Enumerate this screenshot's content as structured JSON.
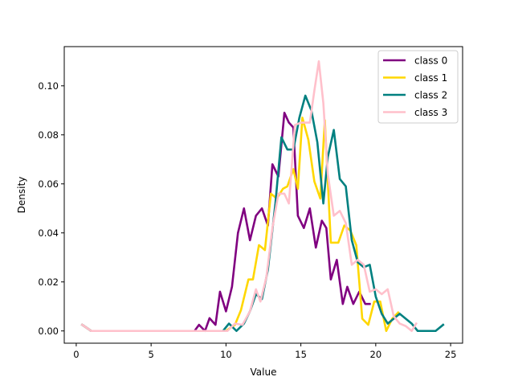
{
  "chart_data": {
    "type": "line",
    "title": "",
    "xlabel": "Value",
    "ylabel": "Density",
    "xlim": [
      -0.8,
      25.8
    ],
    "ylim": [
      -0.005,
      0.116
    ],
    "xticks": [
      0,
      5,
      10,
      15,
      20,
      25
    ],
    "xtick_labels": [
      "0",
      "5",
      "10",
      "15",
      "20",
      "25"
    ],
    "yticks": [
      0.0,
      0.02,
      0.04,
      0.06,
      0.08,
      0.1
    ],
    "ytick_labels": [
      "0.00",
      "0.02",
      "0.04",
      "0.06",
      "0.08",
      "0.10"
    ],
    "grid": false,
    "legend": {
      "position": "top-right"
    },
    "series": [
      {
        "name": "class 0",
        "color": "#800080",
        "x": [
          0.4,
          1.0,
          7.9,
          8.2,
          8.6,
          8.9,
          9.3,
          9.6,
          10.0,
          10.4,
          10.8,
          11.2,
          11.6,
          12.0,
          12.4,
          12.8,
          13.1,
          13.5,
          13.9,
          14.2,
          14.5,
          14.8,
          15.2,
          15.6,
          16.0,
          16.4,
          16.7,
          17.0,
          17.4,
          17.8,
          18.1,
          18.5,
          18.9,
          19.3,
          19.6
        ],
        "y": [
          0.0025,
          0.0,
          0.0,
          0.0025,
          0.0,
          0.0052,
          0.0025,
          0.016,
          0.008,
          0.018,
          0.04,
          0.05,
          0.037,
          0.047,
          0.05,
          0.043,
          0.068,
          0.063,
          0.089,
          0.085,
          0.083,
          0.047,
          0.042,
          0.05,
          0.034,
          0.045,
          0.042,
          0.021,
          0.029,
          0.011,
          0.018,
          0.011,
          0.016,
          0.011,
          0.011
        ]
      },
      {
        "name": "class 1",
        "color": "#FFD700",
        "x": [
          0.4,
          1.0,
          9.5,
          10.0,
          10.6,
          11.0,
          11.5,
          11.8,
          12.2,
          12.6,
          13.0,
          13.4,
          13.8,
          14.1,
          14.5,
          14.8,
          15.1,
          15.5,
          15.9,
          16.3,
          16.6,
          17.0,
          17.5,
          17.9,
          18.3,
          18.7,
          19.1,
          19.5,
          19.9,
          20.3,
          20.7,
          21.1,
          21.5
        ],
        "y": [
          0.0025,
          0.0,
          0.0,
          0.0,
          0.0025,
          0.0085,
          0.021,
          0.021,
          0.035,
          0.033,
          0.056,
          0.054,
          0.058,
          0.059,
          0.066,
          0.058,
          0.087,
          0.078,
          0.061,
          0.054,
          0.086,
          0.036,
          0.036,
          0.043,
          0.041,
          0.035,
          0.005,
          0.0025,
          0.012,
          0.012,
          0.0,
          0.005,
          0.0075
        ]
      },
      {
        "name": "class 2",
        "color": "#008080",
        "x": [
          0.4,
          1.0,
          9.4,
          9.8,
          10.2,
          10.7,
          11.2,
          11.6,
          12.0,
          12.4,
          12.8,
          13.3,
          13.7,
          14.1,
          14.5,
          14.9,
          15.3,
          15.7,
          16.1,
          16.5,
          16.8,
          17.2,
          17.6,
          18.0,
          18.4,
          18.8,
          19.2,
          19.6,
          20.0,
          20.4,
          20.8,
          21.2,
          21.6,
          22.0,
          22.4,
          22.8,
          23.2,
          23.6,
          24.0,
          24.5
        ],
        "y": [
          0.0025,
          0.0,
          0.0,
          0.0,
          0.003,
          0.0,
          0.003,
          0.008,
          0.015,
          0.013,
          0.025,
          0.052,
          0.079,
          0.074,
          0.074,
          0.087,
          0.096,
          0.09,
          0.077,
          0.052,
          0.071,
          0.082,
          0.062,
          0.059,
          0.037,
          0.028,
          0.026,
          0.027,
          0.014,
          0.007,
          0.003,
          0.005,
          0.007,
          0.005,
          0.003,
          0.0,
          0.0,
          0.0,
          0.0,
          0.0025
        ]
      },
      {
        "name": "class 3",
        "color": "#FFC0CB",
        "x": [
          0.4,
          1.0,
          9.6,
          10.1,
          10.6,
          11.1,
          11.6,
          12.0,
          12.3,
          12.7,
          13.1,
          13.5,
          13.9,
          14.2,
          14.6,
          15.0,
          15.3,
          15.6,
          15.9,
          16.2,
          16.5,
          16.8,
          17.2,
          17.6,
          18.0,
          18.4,
          18.8,
          19.2,
          19.6,
          20.0,
          20.4,
          20.8,
          21.2,
          21.6,
          22.0,
          22.4,
          22.7
        ],
        "y": [
          0.0025,
          0.0,
          0.0,
          0.0,
          0.003,
          0.0025,
          0.008,
          0.017,
          0.012,
          0.022,
          0.042,
          0.056,
          0.056,
          0.052,
          0.084,
          0.085,
          0.085,
          0.085,
          0.098,
          0.11,
          0.093,
          0.064,
          0.047,
          0.049,
          0.044,
          0.027,
          0.029,
          0.027,
          0.016,
          0.017,
          0.015,
          0.017,
          0.006,
          0.003,
          0.002,
          0.0,
          0.003
        ]
      }
    ]
  }
}
